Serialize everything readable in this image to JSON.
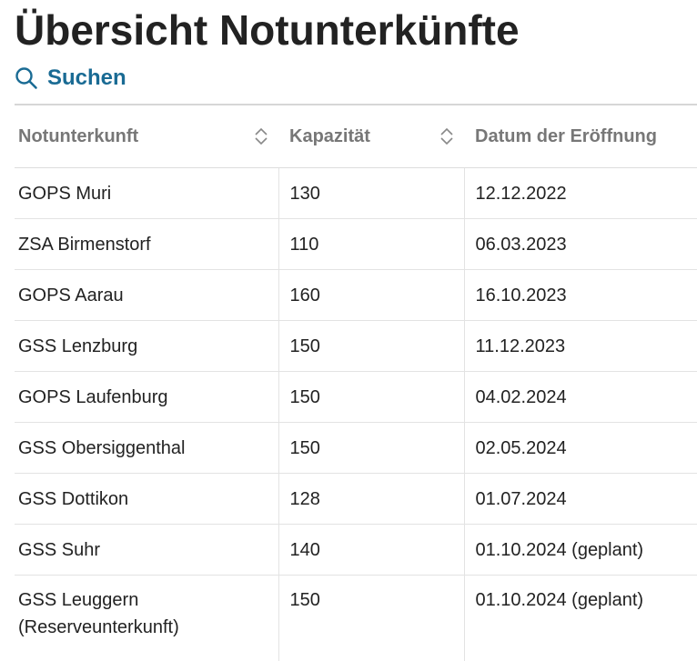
{
  "header": {
    "title": "Übersicht Notunterkünfte"
  },
  "search": {
    "label": "Suchen",
    "icon": "search-icon"
  },
  "colors": {
    "accent": "#1a6b94",
    "header_text": "#777777",
    "body_text": "#222222"
  },
  "table": {
    "columns": [
      {
        "label": "Notunterkunft",
        "sortable": true
      },
      {
        "label": "Kapazität",
        "sortable": true
      },
      {
        "label": "Datum der Eröffnung",
        "sortable": false
      }
    ],
    "rows": [
      {
        "name": "GOPS Muri",
        "capacity": "130",
        "date": "12.12.2022"
      },
      {
        "name": "ZSA Birmenstorf",
        "capacity": "110",
        "date": "06.03.2023"
      },
      {
        "name": "GOPS Aarau",
        "capacity": "160",
        "date": "16.10.2023"
      },
      {
        "name": "GSS Lenzburg",
        "capacity": "150",
        "date": "11.12.2023"
      },
      {
        "name": "GOPS Laufenburg",
        "capacity": "150",
        "date": "04.02.2024"
      },
      {
        "name": "GSS Obersiggenthal",
        "capacity": "150",
        "date": "02.05.2024"
      },
      {
        "name": "GSS Dottikon",
        "capacity": "128",
        "date": "01.07.2024"
      },
      {
        "name": "GSS Suhr",
        "capacity": "140",
        "date": "01.10.2024 (geplant)"
      },
      {
        "name": "GSS Leuggern",
        "name_note": "(Reserveunterkunft)",
        "capacity": "150",
        "date": "01.10.2024 (geplant)"
      }
    ]
  }
}
